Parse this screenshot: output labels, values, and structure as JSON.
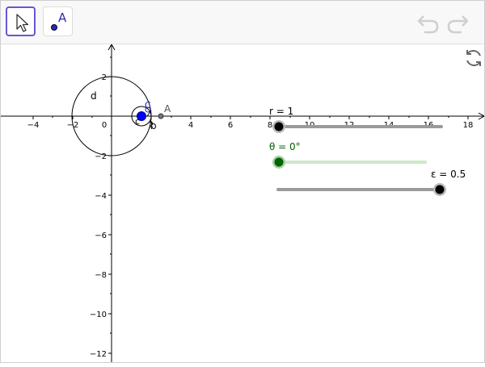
{
  "toolbar": {
    "tools": [
      {
        "name": "move-tool",
        "icon": "cursor-arrow-icon",
        "selected": true
      },
      {
        "name": "point-tool",
        "icon": "point-icon",
        "label": "A",
        "selected": false
      }
    ],
    "undo_icon": "undo-icon",
    "redo_icon": "redo-icon"
  },
  "graphics": {
    "refresh_icon": "refresh-icon",
    "x_tick_labels": [
      "−4",
      "−2",
      "0",
      "2",
      "4",
      "6",
      "8",
      "10",
      "12",
      "14",
      "16",
      "18"
    ],
    "y_tick_labels": [
      "2",
      "−2",
      "−4",
      "−6",
      "−8",
      "−10",
      "−12"
    ],
    "objects": {
      "circle_d": "d",
      "circle_c": "c",
      "point_b": "b",
      "point_c_top": "C",
      "point_a": "A"
    },
    "sliders": {
      "r": {
        "label": "r = 1",
        "value": 1
      },
      "theta": {
        "label": "θ = 0°",
        "value": 0
      },
      "epsilon": {
        "label": "ε = 0.5",
        "value": 0.5
      }
    }
  },
  "colors": {
    "accent": "#6557d2",
    "point_blue": "#0000ff",
    "slider_green": "#006400",
    "slider_green_track": "#cde8c8",
    "slider_gray_track": "#9a9a9a"
  }
}
